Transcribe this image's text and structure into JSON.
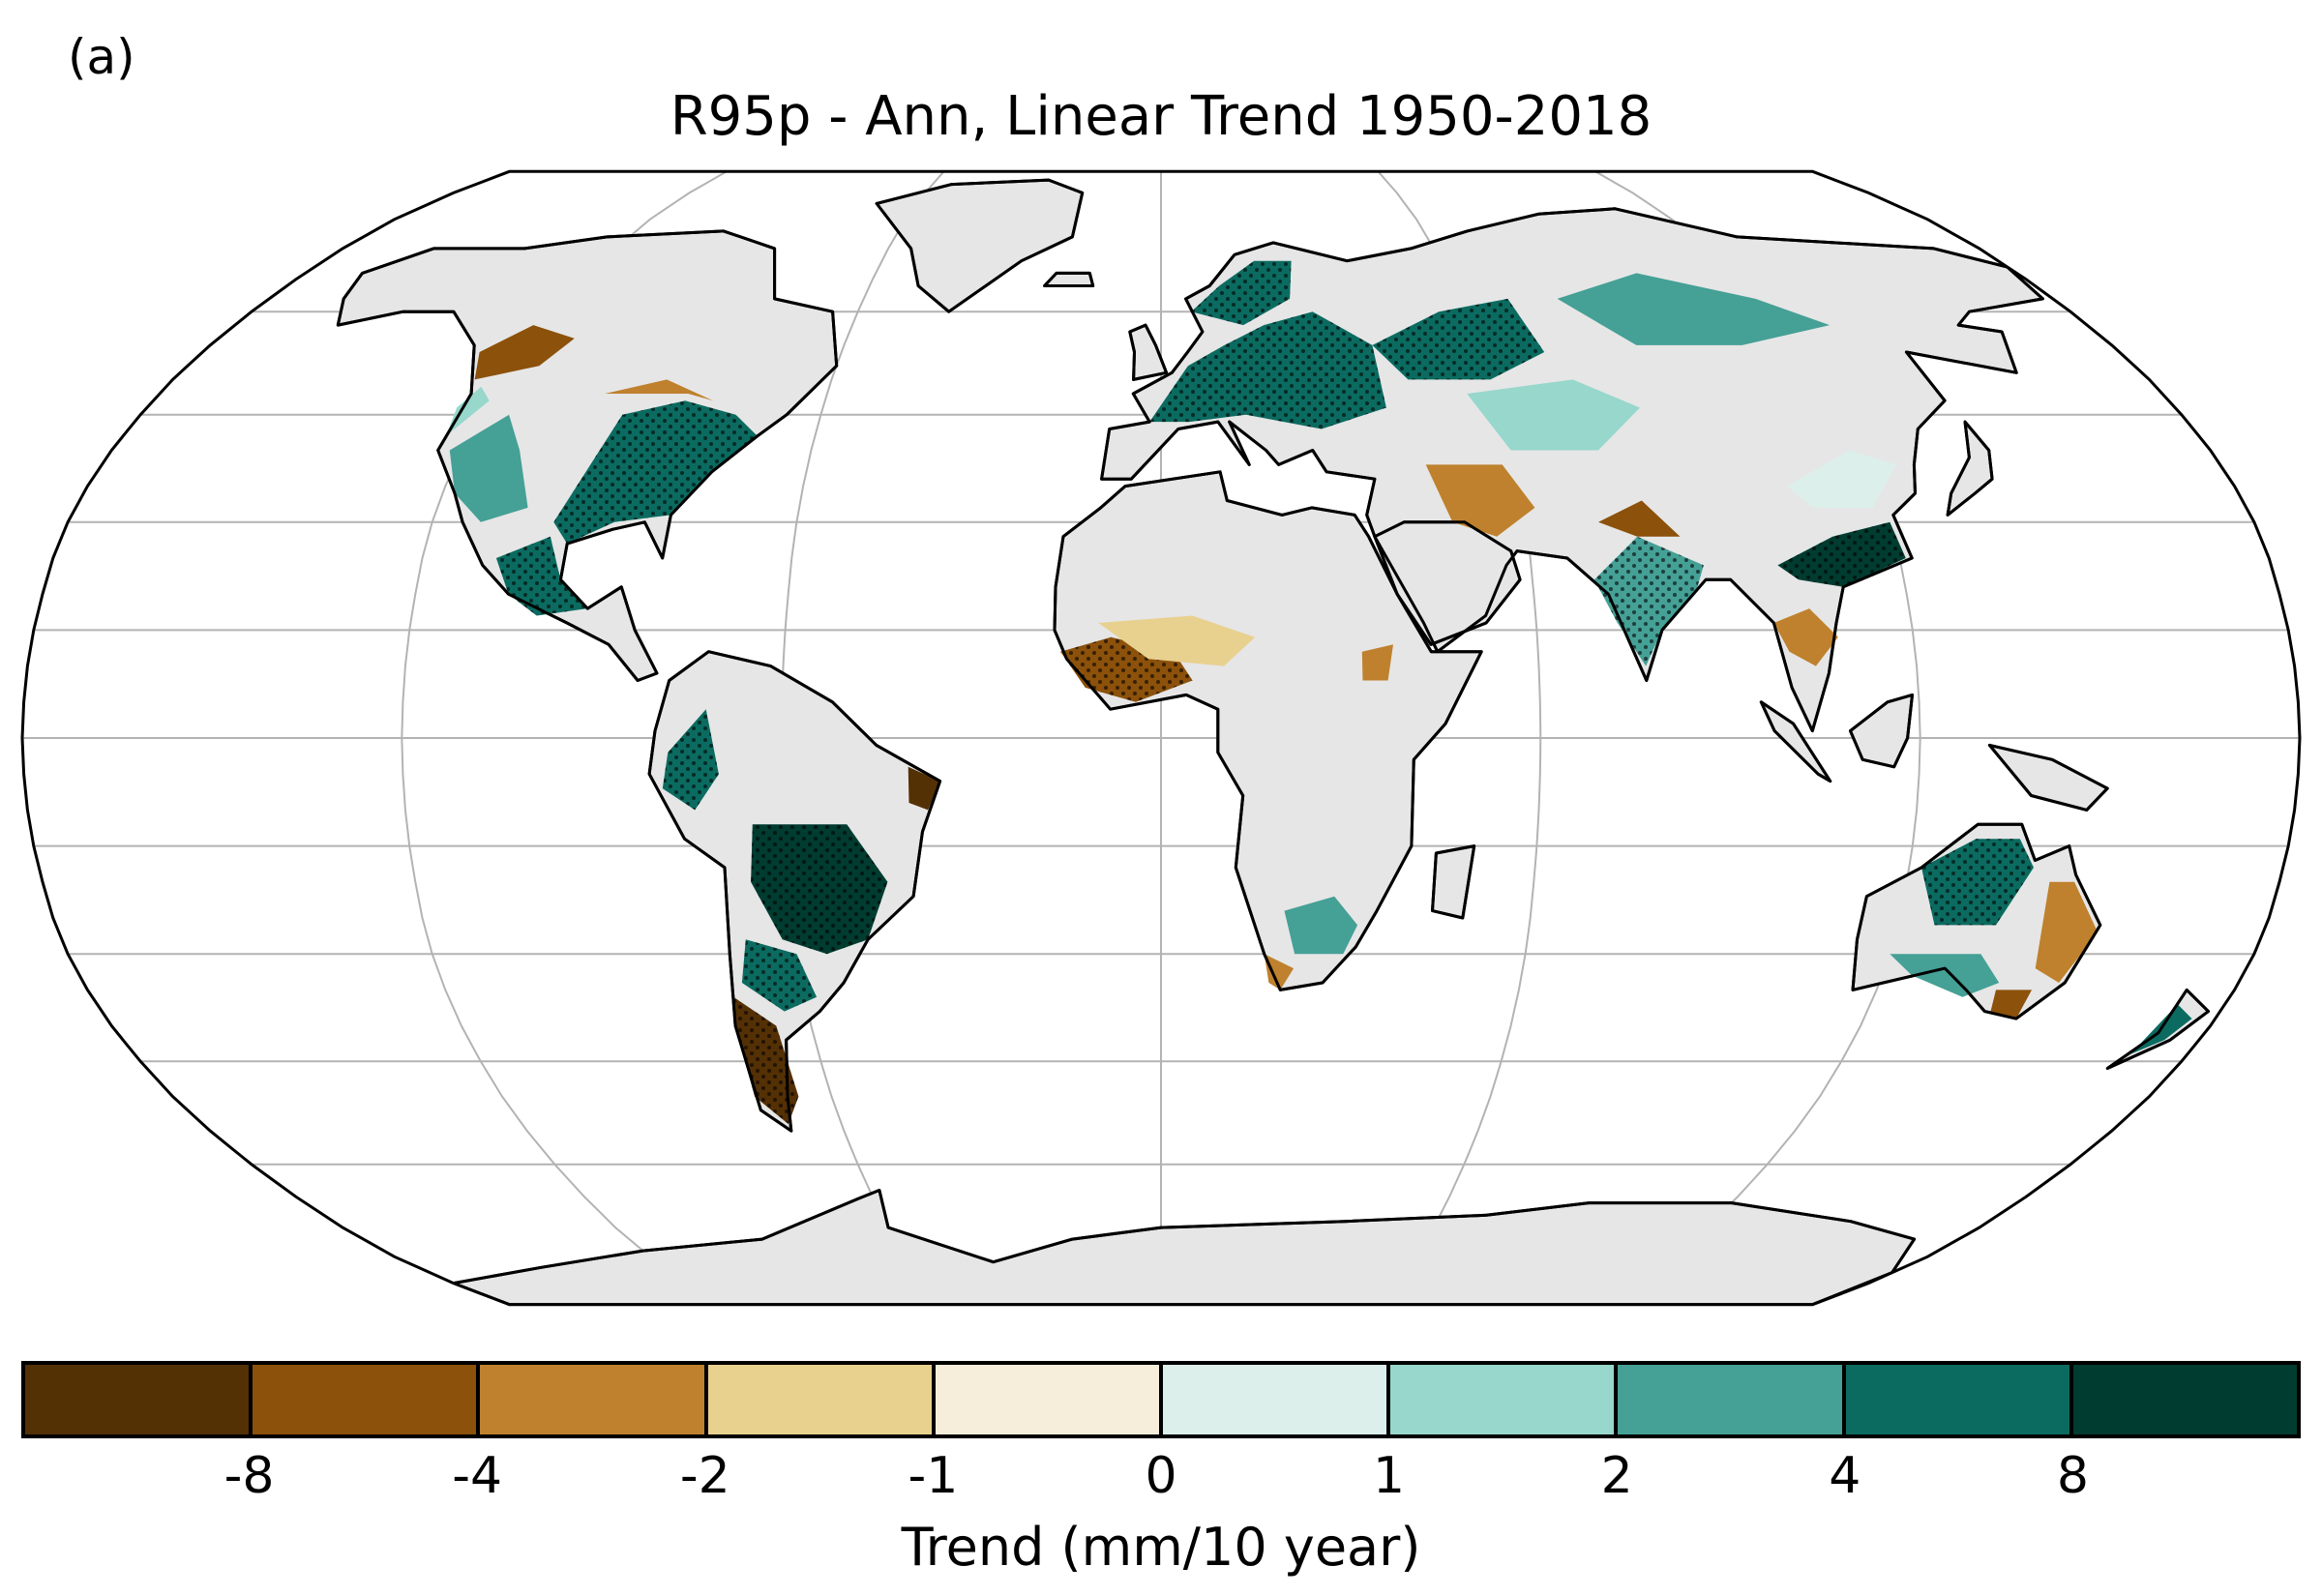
{
  "panel_label": "(a)",
  "title": "R95p - Ann, Linear Trend 1950-2018",
  "colorbar": {
    "label": "Trend (mm/10 year)",
    "ticks": [
      "-8",
      "-4",
      "-2",
      "-1",
      "0",
      "1",
      "2",
      "4",
      "8"
    ],
    "colors": [
      "#543005",
      "#8c510a",
      "#bf812d",
      "#e8d08f",
      "#f6eedb",
      "#dcefeb",
      "#97d7cc",
      "#45a096",
      "#0b6b60",
      "#003c30"
    ]
  },
  "map": {
    "projection": "Robinson",
    "land_no_data_color": "#e6e6e6",
    "graticule_color": "#b3b3b3",
    "stippling": "significant trend"
  }
}
